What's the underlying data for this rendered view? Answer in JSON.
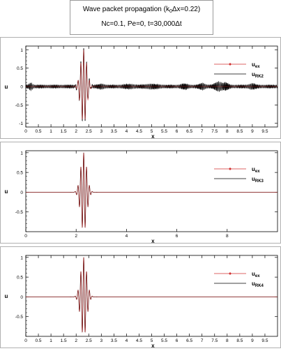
{
  "title": {
    "line1_prefix": "Wave packet propagation (k",
    "line1_sub": "0",
    "line1_suffix": "Δx=0.22)",
    "line2": "Nc=0.1, Pe=0, t=30,000Δt"
  },
  "colors": {
    "exact": "#d03030",
    "numerical": "#000000",
    "axis": "#000000"
  },
  "chart_data": [
    {
      "type": "line",
      "xlabel": "x",
      "ylabel": "u",
      "xlim": [
        0,
        10
      ],
      "ylim": [
        -1.1,
        1.1
      ],
      "x_ticks": [
        "0",
        "0.5",
        "1",
        "1.5",
        "2",
        "2.5",
        "3",
        "3.5",
        "4",
        "4.5",
        "5",
        "5.5",
        "6",
        "6.5",
        "7",
        "7.5",
        "8",
        "8.5",
        "9",
        "9.5"
      ],
      "x_tick_values": [
        0,
        0.5,
        1,
        1.5,
        2,
        2.5,
        3,
        3.5,
        4,
        4.5,
        5,
        5.5,
        6,
        6.5,
        7,
        7.5,
        8,
        8.5,
        9,
        9.5
      ],
      "y_ticks": [
        "-1",
        "-0.5",
        "0",
        "0.5",
        "1"
      ],
      "y_tick_values": [
        -1,
        -0.5,
        0,
        0.5,
        1
      ],
      "series": [
        {
          "name": "u",
          "sub": "ex",
          "marker": "diamond"
        },
        {
          "name": "u",
          "sub": "RK2"
        }
      ],
      "packet_center": 2.3,
      "packet_amplitude": 1.0,
      "packet_width": 0.17,
      "wavenumber": 55,
      "noise": true
    },
    {
      "type": "line",
      "xlabel": "x",
      "ylabel": "u",
      "xlim": [
        0,
        10
      ],
      "ylim": [
        -1.0,
        1.05
      ],
      "x_ticks": [
        "0",
        "2",
        "4",
        "6",
        "8"
      ],
      "x_tick_values": [
        0,
        2,
        4,
        6,
        8
      ],
      "y_ticks": [
        "-0.5",
        "0",
        "0.5",
        "1"
      ],
      "y_tick_values": [
        -0.5,
        0,
        0.5,
        1
      ],
      "series": [
        {
          "name": "u",
          "sub": "ex",
          "marker": "diamond"
        },
        {
          "name": "u",
          "sub": "RK3"
        }
      ],
      "packet_center": 2.3,
      "packet_amplitude": 1.0,
      "packet_width": 0.17,
      "wavenumber": 55,
      "noise": false
    },
    {
      "type": "line",
      "xlabel": "x",
      "ylabel": "u",
      "xlim": [
        0,
        10
      ],
      "ylim": [
        -1.0,
        1.05
      ],
      "x_ticks": [
        "0",
        "0.5",
        "1",
        "1.5",
        "2",
        "2.5",
        "3",
        "3.5",
        "4",
        "4.5",
        "5",
        "5.5",
        "6",
        "6.5",
        "7",
        "7.5",
        "8",
        "8.5",
        "9",
        "9.5"
      ],
      "x_tick_values": [
        0,
        0.5,
        1,
        1.5,
        2,
        2.5,
        3,
        3.5,
        4,
        4.5,
        5,
        5.5,
        6,
        6.5,
        7,
        7.5,
        8,
        8.5,
        9,
        9.5
      ],
      "y_ticks": [
        "-0.5",
        "0",
        "0.5",
        "1"
      ],
      "y_tick_values": [
        -0.5,
        0,
        0.5,
        1
      ],
      "series": [
        {
          "name": "u",
          "sub": "ex",
          "marker": "diamond"
        },
        {
          "name": "u",
          "sub": "RK4"
        }
      ],
      "packet_center": 2.3,
      "packet_amplitude": 1.0,
      "packet_width": 0.17,
      "wavenumber": 55,
      "noise": false
    }
  ]
}
